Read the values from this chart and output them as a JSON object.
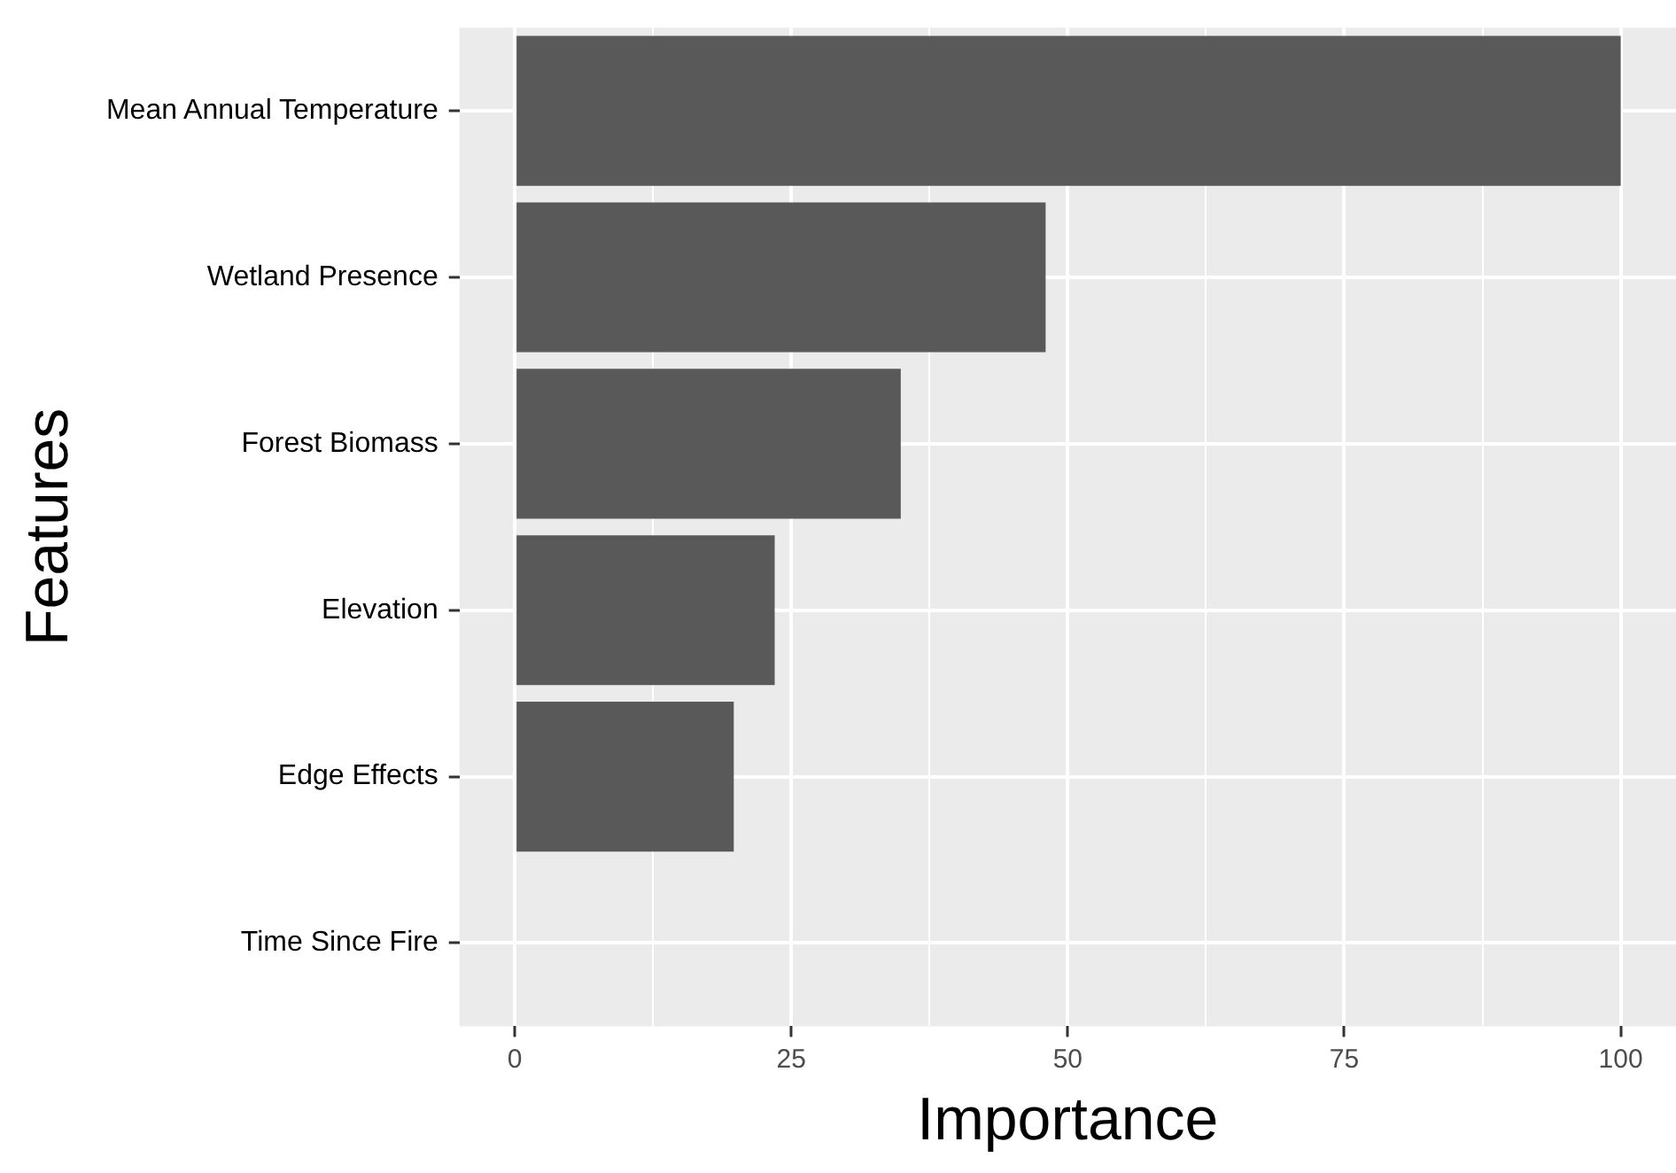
{
  "chart_data": {
    "type": "bar",
    "orientation": "horizontal",
    "xlabel": "Importance",
    "ylabel": "Features",
    "categories": [
      "Mean Annual Temperature",
      "Wetland Presence",
      "Forest Biomass",
      "Elevation",
      "Edge Effects",
      "Time Since Fire"
    ],
    "values": [
      100,
      48,
      34.9,
      23.5,
      19.8,
      0
    ],
    "color": "#595959",
    "xlim": [
      -5,
      105
    ],
    "xticks": [
      0,
      {
        "value": 12.5,
        "label": null
      },
      25,
      {
        "value": 37.5,
        "label": null
      },
      50,
      {
        "value": 62.5,
        "label": null
      },
      75,
      {
        "value": 87.5,
        "label": null
      },
      100
    ],
    "grid": true,
    "legend": false
  }
}
